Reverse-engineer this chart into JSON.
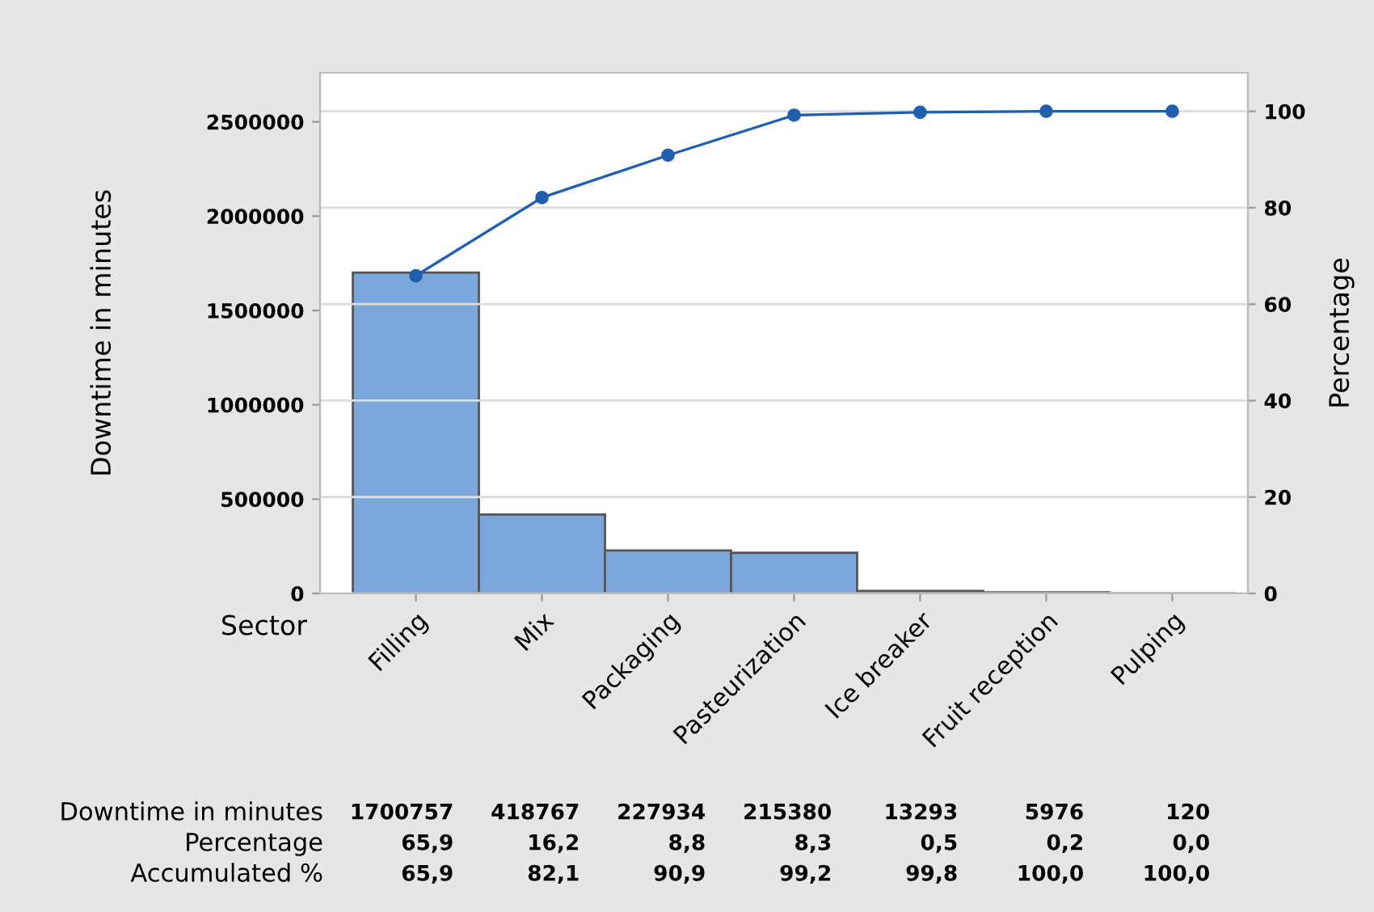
{
  "chart_data": {
    "type": "bar",
    "xlabel": "Sector",
    "ylabel": "Downtime in minutes",
    "y2label": "Percentage",
    "categories": [
      "Filling",
      "Mix",
      "Packaging",
      "Pasteurization",
      "Ice breaker",
      "Fruit reception",
      "Pulping"
    ],
    "series": [
      {
        "color": "#7ba7da",
        "values": [
          1700757,
          418767,
          227934,
          215380,
          13293,
          5976,
          120
        ],
        "value_labels": [
          "1700757",
          "418767",
          "227934",
          "215380",
          "13293",
          "5976",
          "120"
        ]
      },
      {
        "type": "line",
        "axis": "y2",
        "color": "#1f5fae",
        "marker": "circle",
        "values": [
          65.9,
          82.1,
          90.9,
          99.2,
          99.8,
          100.0,
          100.0
        ],
        "value_labels": [
          "65,9",
          "82,1",
          "90,9",
          "99,2",
          "99,8",
          "100,0",
          "100,0"
        ]
      }
    ],
    "annotations": [
      "Downtime in minutes",
      "Percentage",
      "Accumulated %",
      "65,9",
      "16,2",
      "8,8",
      "8,3",
      "0,5",
      "0,2",
      "0,0"
    ],
    "ylim": [
      0,
      2760000
    ],
    "yticks": [
      0,
      500000,
      1000000,
      1500000,
      2000000,
      2500000
    ],
    "y2lim": [
      0,
      108
    ],
    "y2ticks": [
      0,
      20,
      40,
      60,
      80,
      100
    ],
    "grid": "y",
    "legend": false
  }
}
